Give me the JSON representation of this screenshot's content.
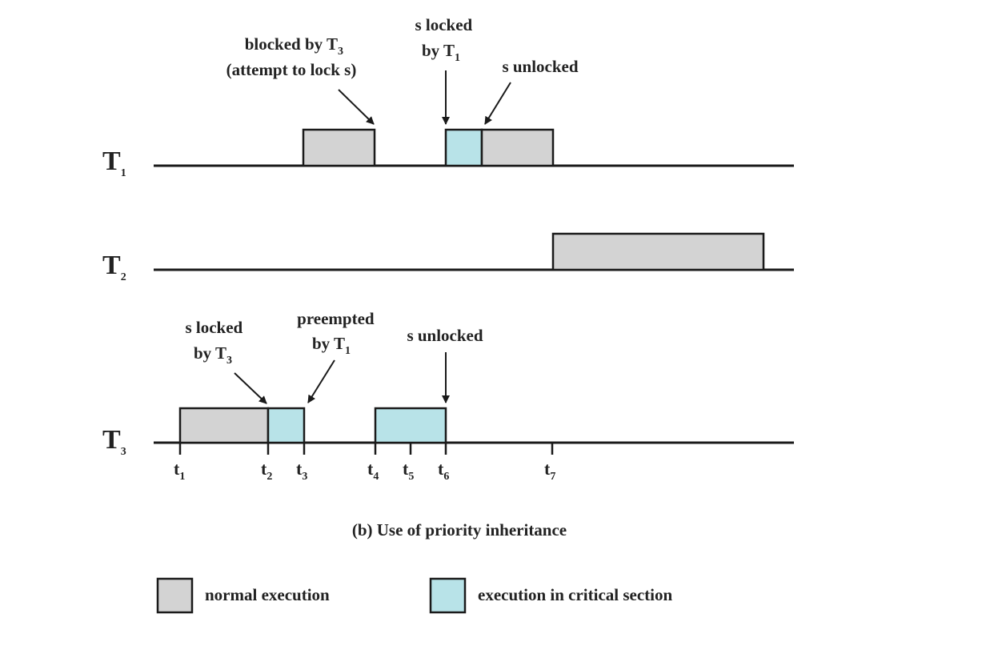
{
  "colors": {
    "normal": "#d3d3d3",
    "critical": "#b8e3e8",
    "line": "#1a1a1a"
  },
  "tasks": [
    {
      "name": "T",
      "sub": "1"
    },
    {
      "name": "T",
      "sub": "2"
    },
    {
      "name": "T",
      "sub": "3"
    }
  ],
  "time_labels": [
    {
      "t": "t",
      "sub": "1"
    },
    {
      "t": "t",
      "sub": "2"
    },
    {
      "t": "t",
      "sub": "3"
    },
    {
      "t": "t",
      "sub": "4"
    },
    {
      "t": "t",
      "sub": "5"
    },
    {
      "t": "t",
      "sub": "6"
    },
    {
      "t": "t",
      "sub": "7"
    }
  ],
  "annotations": {
    "t1_blocked": {
      "line1_pre": "blocked by T",
      "line1_sub": "3",
      "line2": "(attempt to lock s)"
    },
    "t1_locked": {
      "line1": "s locked",
      "line2_pre": "by T",
      "line2_sub": "1"
    },
    "t1_unlocked": {
      "line1": "s unlocked"
    },
    "t3_locked": {
      "line1": "s locked",
      "line2_pre": "by T",
      "line2_sub": "3"
    },
    "t3_preempted": {
      "line1": "preempted",
      "line2_pre": "by T",
      "line2_sub": "1"
    },
    "t3_unlocked": {
      "line1": "s unlocked"
    }
  },
  "caption": "(b) Use of priority inheritance",
  "legend": {
    "normal": "normal execution",
    "critical": "execution in critical section"
  }
}
